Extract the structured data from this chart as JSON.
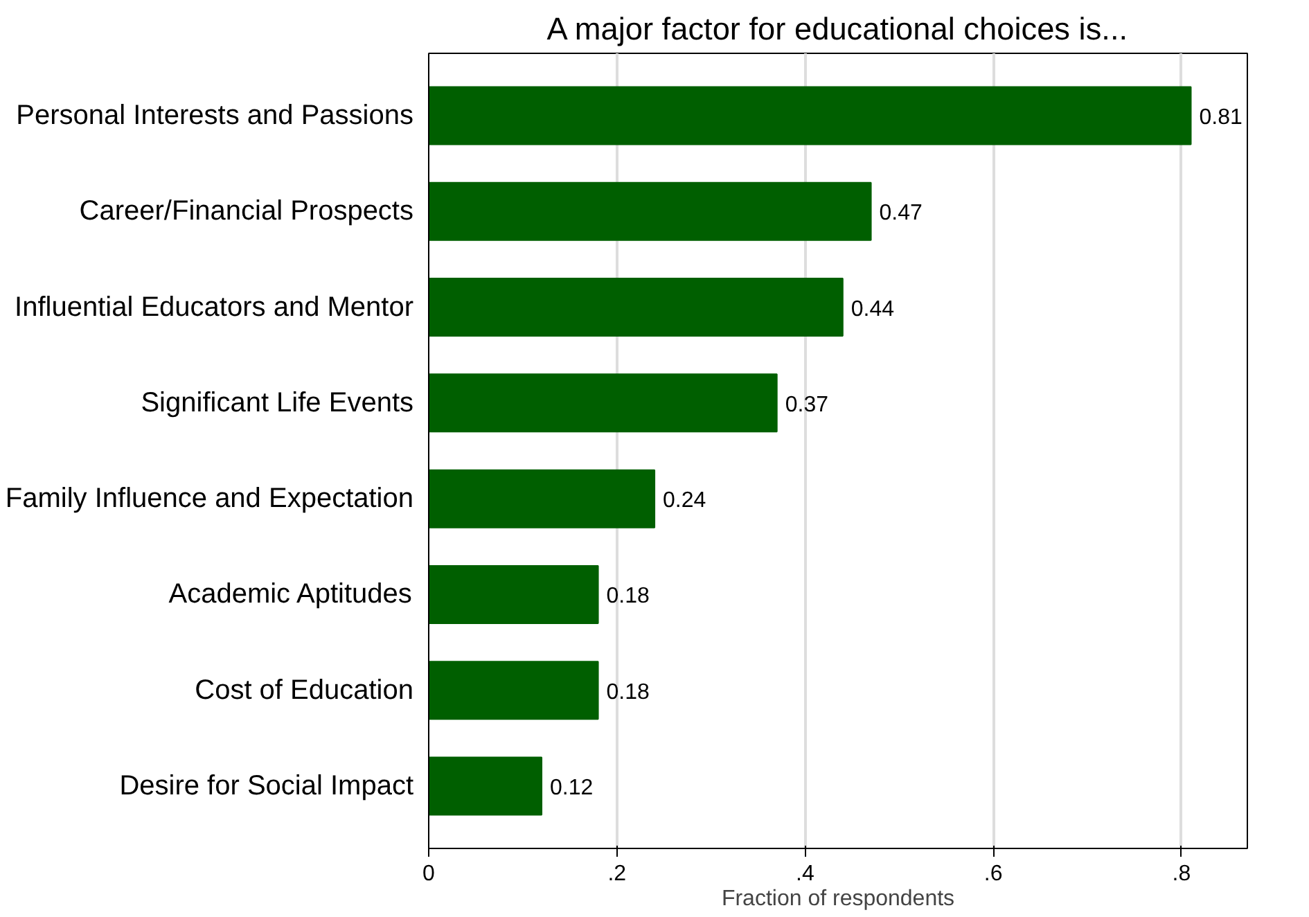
{
  "chart_data": {
    "type": "bar",
    "orientation": "horizontal",
    "title": "A major factor for educational choices is...",
    "xlabel": "Fraction of respondents",
    "categories": [
      "Personal Interests and Passions",
      "Career/Financial Prospects",
      "Influential Educators and Mentor",
      "Significant Life Events",
      "Family Influence and Expectation",
      "Academic Aptitudes",
      "Cost of Education",
      "Desire for Social Impact"
    ],
    "values": [
      0.81,
      0.47,
      0.44,
      0.37,
      0.24,
      0.18,
      0.18,
      0.12
    ],
    "color": "#005f00",
    "data_labels": true,
    "xlim": [
      0,
      0.87
    ],
    "xticks": [
      0,
      {
        "value": 0.2,
        "label": ".2"
      },
      {
        "value": 0.4,
        "label": ".4"
      },
      {
        "value": 0.6,
        "label": ".6"
      },
      {
        "value": 0.8,
        "label": ".8"
      }
    ],
    "grid": "x"
  }
}
